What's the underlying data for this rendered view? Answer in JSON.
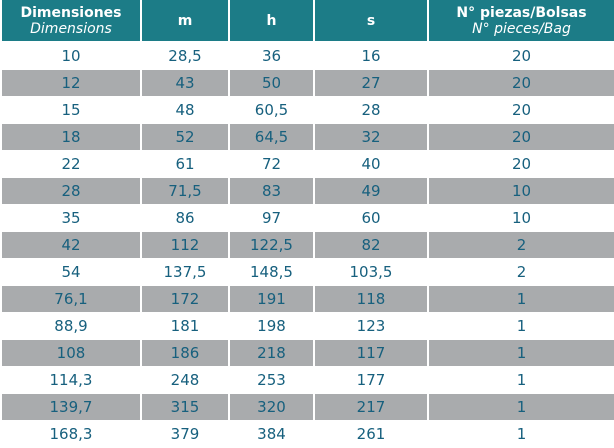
{
  "table": {
    "header": [
      [
        "Dimensiones",
        "Dimensions"
      ],
      [
        "m"
      ],
      [
        "h"
      ],
      [
        "s"
      ],
      [
        "N° piezas/Bolsas",
        "N° pieces/Bag"
      ]
    ],
    "rows": [
      [
        "10",
        "28,5",
        "36",
        "16",
        "20"
      ],
      [
        "12",
        "43",
        "50",
        "27",
        "20"
      ],
      [
        "15",
        "48",
        "60,5",
        "28",
        "20"
      ],
      [
        "18",
        "52",
        "64,5",
        "32",
        "20"
      ],
      [
        "22",
        "61",
        "72",
        "40",
        "20"
      ],
      [
        "28",
        "71,5",
        "83",
        "49",
        "10"
      ],
      [
        "35",
        "86",
        "97",
        "60",
        "10"
      ],
      [
        "42",
        "112",
        "122,5",
        "82",
        "2"
      ],
      [
        "54",
        "137,5",
        "148,5",
        "103,5",
        "2"
      ],
      [
        "76,1",
        "172",
        "191",
        "118",
        "1"
      ],
      [
        "88,9",
        "181",
        "198",
        "123",
        "1"
      ],
      [
        "108",
        "186",
        "218",
        "117",
        "1"
      ],
      [
        "114,3",
        "248",
        "253",
        "177",
        "1"
      ],
      [
        "139,7",
        "315",
        "320",
        "217",
        "1"
      ],
      [
        "168,3",
        "379",
        "384",
        "261",
        "1"
      ]
    ]
  }
}
